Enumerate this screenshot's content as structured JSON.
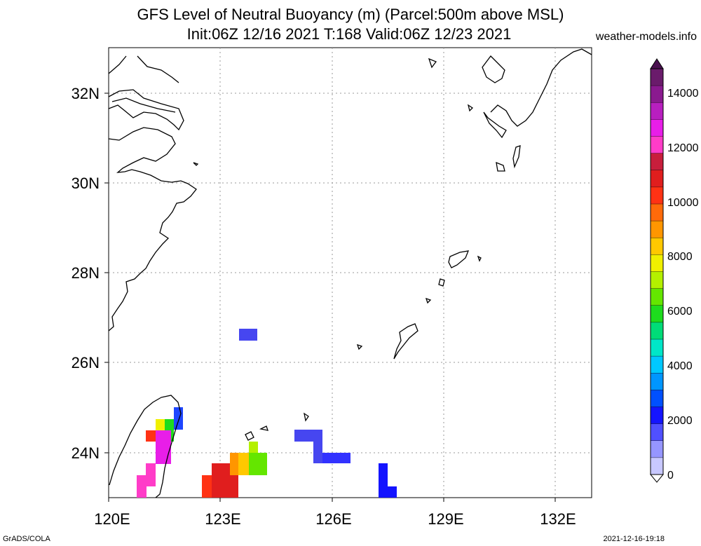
{
  "title": {
    "line1": "GFS Level of Neutral Buoyancy (m) (Parcel:500m above MSL)",
    "line2": "Init:06Z 12/16 2021 T:168 Valid:06Z 12/23 2021",
    "site": "weather-models.info"
  },
  "footer": {
    "left": "GrADS/COLA",
    "right": "2021-12-16-19:18"
  },
  "axes": {
    "x_ticks": [
      "120E",
      "123E",
      "126E",
      "129E",
      "132E"
    ],
    "y_ticks": [
      "32N",
      "30N",
      "28N",
      "26N",
      "24N"
    ],
    "lon_range": [
      120,
      133
    ],
    "lat_range": [
      23,
      33
    ],
    "grid": true
  },
  "colorbar": {
    "labels": [
      "14000",
      "12000",
      "10000",
      "8000",
      "6000",
      "4000",
      "2000",
      "0"
    ],
    "colors": [
      "#6a1b6b",
      "#8a1a8f",
      "#b81fbf",
      "#e81ee8",
      "#ff3cc8",
      "#c81e3c",
      "#e01e1e",
      "#ff3214",
      "#ff6a0a",
      "#ff9600",
      "#ffc800",
      "#f0f000",
      "#b4f000",
      "#64e600",
      "#1edc1e",
      "#00dc78",
      "#00e6c8",
      "#00c8ff",
      "#0096ff",
      "#0050ff",
      "#1414ff",
      "#5050ff",
      "#9696ff",
      "#c8c8ff"
    ]
  },
  "icons": [
    "colorbar-top-arrow",
    "colorbar-bottom-arrow"
  ]
}
